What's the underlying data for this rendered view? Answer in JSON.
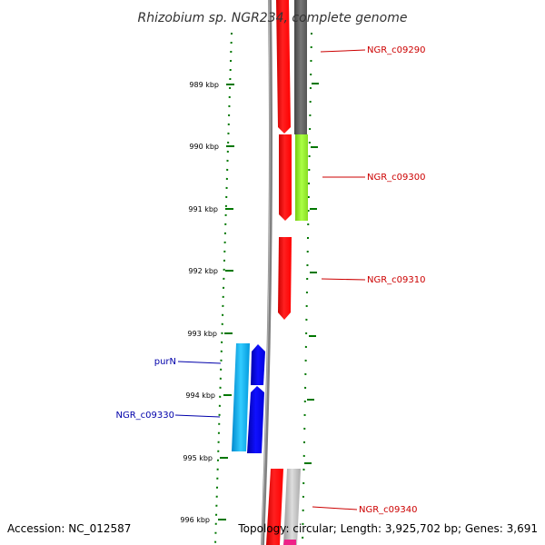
{
  "title": "Rhizobium sp. NGR234, complete genome",
  "accession": "Accession: NC_012587",
  "topology": "Topology: circular; Length: 3,925,702 bp; Genes: 3,691",
  "ticks": [
    "989 kbp",
    "990 kbp",
    "991 kbp",
    "992 kbp",
    "993 kbp",
    "994 kbp",
    "995 kbp",
    "996 kbp"
  ],
  "gene_labels": {
    "ngr_c09290": "NGR_c09290",
    "ngr_c09300": "NGR_c09300",
    "ngr_c09310": "NGR_c09310",
    "purN": "purN",
    "ngr_c09330": "NGR_c09330",
    "ngr_c09340": "NGR_c09340"
  },
  "colors": {
    "forward_cds": "#ff0000",
    "reverse_cds": "#0000ee",
    "reverse_gene": "#00aaee",
    "forward_gene_gray": "#666666",
    "forward_gene_green": "#99ee33",
    "forward_gene_light": "#bbbbbb",
    "backbone": "#888888",
    "tick": "#007700",
    "forward_label": "#cc0000",
    "reverse_label": "#0000aa"
  }
}
